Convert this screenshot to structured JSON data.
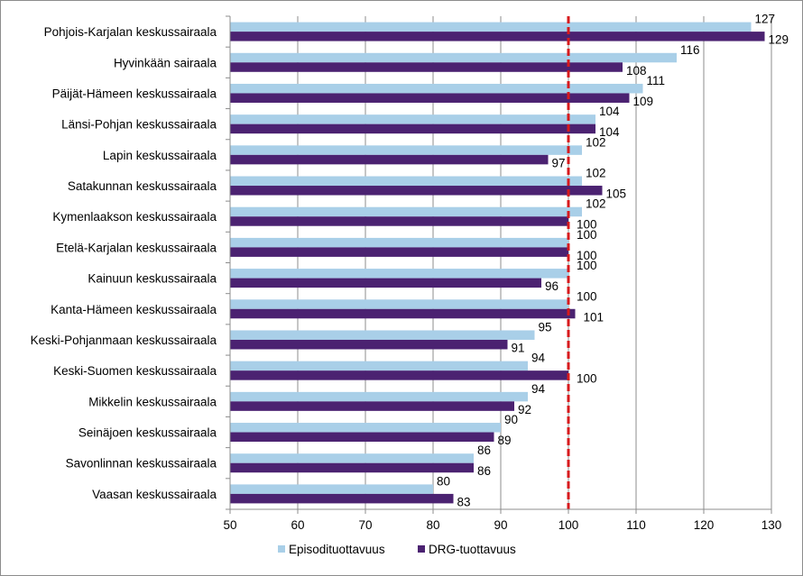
{
  "chart_data": {
    "type": "bar",
    "orientation": "horizontal",
    "categories": [
      "Pohjois-Karjalan keskussairaala",
      "Hyvinkään sairaala",
      "Päijät-Hämeen keskussairaala",
      "Länsi-Pohjan keskussairaala",
      "Lapin keskussairaala",
      "Satakunnan keskussairaala",
      "Kymenlaakson keskussairaala",
      "Etelä-Karjalan keskussairaala",
      "Kainuun keskussairaala",
      "Kanta-Hämeen keskussairaala",
      "Keski-Pohjanmaan keskussairaala",
      "Keski-Suomen keskussairaala",
      "Mikkelin keskussairaala",
      "Seinäjoen keskussairaala",
      "Savonlinnan keskussairaala",
      "Vaasan keskussairaala"
    ],
    "series": [
      {
        "name": "Episodituottavuus",
        "color": "#a9cfe8",
        "values": [
          127,
          116,
          111,
          104,
          102,
          102,
          102,
          100,
          100,
          100,
          95,
          94,
          94,
          90,
          86,
          80
        ],
        "labels": [
          "127",
          "116",
          "111",
          "104",
          "102",
          "102",
          "102",
          "100",
          "100",
          "100",
          "95",
          "94",
          "94",
          "90",
          "86",
          "80"
        ]
      },
      {
        "name": "DRG-tuottavuus",
        "color": "#4b2271",
        "values": [
          129,
          108,
          109,
          104,
          97,
          105,
          100,
          100,
          96,
          101,
          91,
          100,
          92,
          89,
          86,
          83
        ],
        "labels": [
          "129",
          "108",
          "109",
          "104",
          "97",
          "105",
          "100",
          "100",
          "96",
          "101",
          "91",
          "100",
          "92",
          "89",
          "86",
          "83"
        ]
      }
    ],
    "xlim": [
      50,
      130
    ],
    "xticks": [
      50,
      60,
      70,
      80,
      90,
      100,
      110,
      120,
      130
    ],
    "xtick_labels": [
      "50",
      "60",
      "70",
      "80",
      "90",
      "100",
      "110",
      "120",
      "130"
    ],
    "reference_line": {
      "value": 100,
      "color": "#d7191c",
      "style": "dashed"
    },
    "gridlines": true,
    "legend_position": "bottom",
    "title": "",
    "xlabel": "",
    "ylabel": ""
  }
}
